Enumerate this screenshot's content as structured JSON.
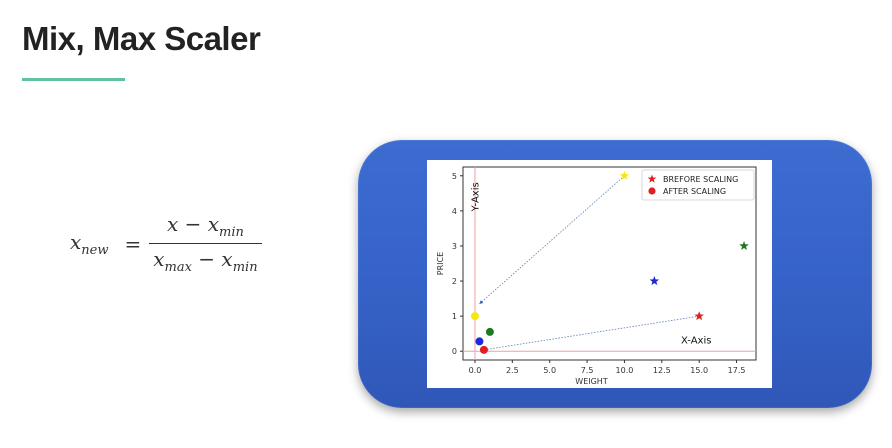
{
  "slide": {
    "title": "Mix, Max Scaler",
    "accent_color": "#5fc2a4",
    "card_color": "#3561c6"
  },
  "formula": {
    "lhs_base": "x",
    "lhs_sub": "new",
    "equals": "=",
    "numerator_a": "x − x",
    "numerator_sub": "min",
    "denominator_a": "x",
    "denominator_sub1": "max",
    "denominator_mid": " − x",
    "denominator_sub2": "min"
  },
  "chart_data": {
    "type": "scatter",
    "xlabel": "WEIGHT",
    "ylabel": "PRICE",
    "xlim": [
      -0.8,
      18.8
    ],
    "ylim": [
      -0.25,
      5.25
    ],
    "xticks": [
      "0.0",
      "2.5",
      "5.0",
      "7.5",
      "10.0",
      "12.5",
      "15.0",
      "17.5"
    ],
    "xtick_values": [
      0,
      2.5,
      5,
      7.5,
      10,
      12.5,
      15,
      17.5
    ],
    "yticks": [
      "0",
      "1",
      "2",
      "3",
      "4",
      "5"
    ],
    "ytick_values": [
      0,
      1,
      2,
      3,
      4,
      5
    ],
    "grid": false,
    "legend_position": "top-right",
    "legend": [
      {
        "label": "BREFORE SCALING",
        "marker": "star",
        "color": "#e02020"
      },
      {
        "label": "AFTER SCALING",
        "marker": "circle",
        "color": "#e02020"
      }
    ],
    "annotations": [
      {
        "text": "Y-Axis",
        "x": 0.25,
        "y": 4.4,
        "rotate": true
      },
      {
        "text": "X-Axis",
        "x": 14.8,
        "y": 0.22,
        "rotate": false
      }
    ],
    "series": [
      {
        "marker": "star",
        "points": [
          {
            "x": 10,
            "y": 5,
            "color": "#f6e70f"
          },
          {
            "x": 12,
            "y": 2,
            "color": "#1a2ad8"
          },
          {
            "x": 18,
            "y": 3,
            "color": "#1f7a1f"
          },
          {
            "x": 15,
            "y": 1,
            "color": "#e02020"
          }
        ]
      },
      {
        "marker": "circle",
        "points": [
          {
            "x": 0,
            "y": 1,
            "color": "#f6e70f"
          },
          {
            "x": 0.3,
            "y": 0.28,
            "color": "#1a2ad8"
          },
          {
            "x": 1.0,
            "y": 0.55,
            "color": "#1f7a1f"
          },
          {
            "x": 0.6,
            "y": 0.04,
            "color": "#e02020"
          }
        ]
      }
    ],
    "reference_lines": [
      {
        "orientation": "vertical",
        "value": 0,
        "color": "#f0a0a0"
      },
      {
        "orientation": "horizontal",
        "value": 0,
        "color": "#f0a0a0"
      }
    ],
    "arrows": [
      {
        "from": [
          10,
          5
        ],
        "to": [
          0.3,
          1.35
        ]
      },
      {
        "from": [
          15,
          1
        ],
        "to": [
          0.6,
          0.04
        ]
      }
    ]
  }
}
